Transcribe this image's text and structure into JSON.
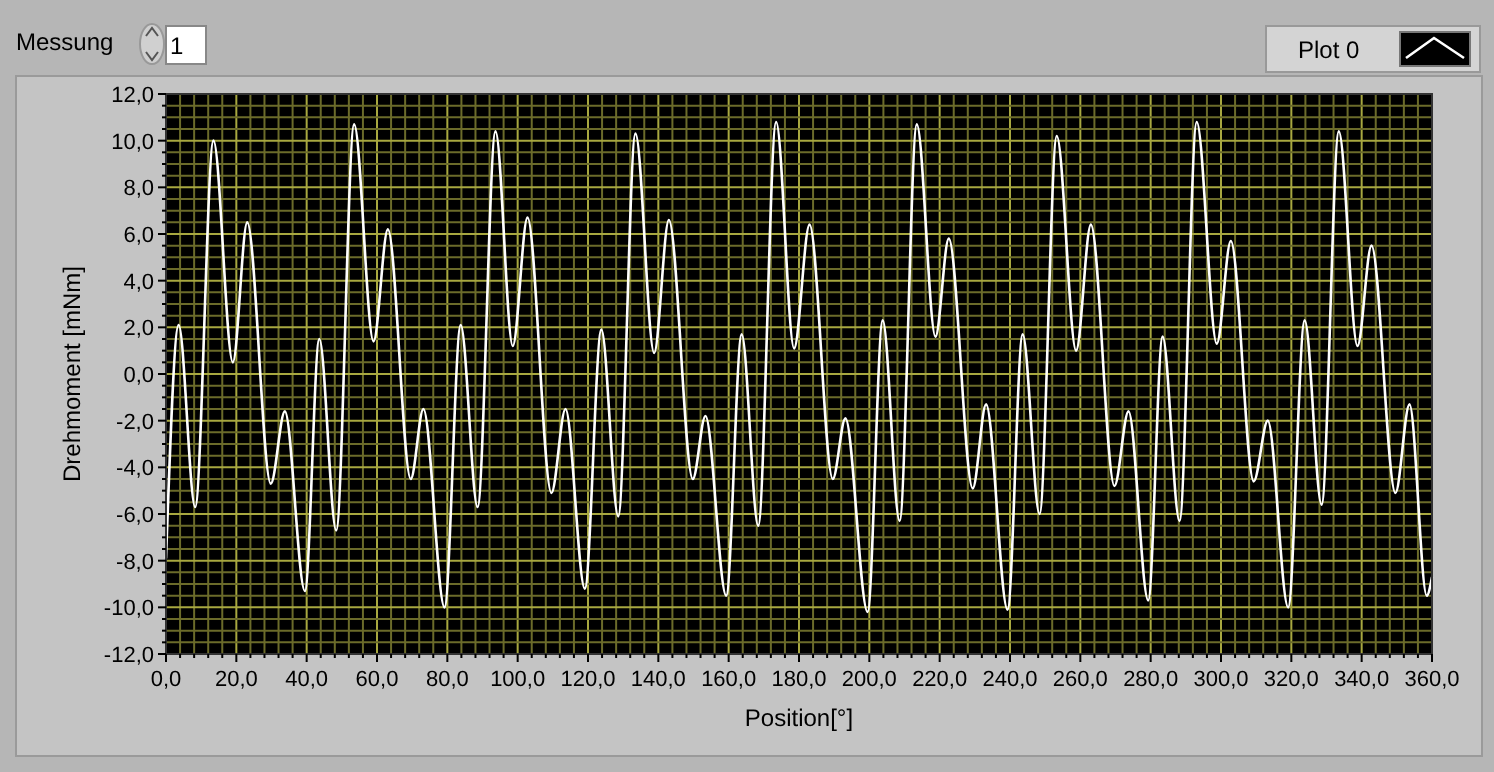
{
  "chart_data": {
    "type": "line",
    "xlabel": "Position[°]",
    "ylabel": "Drehmoment [mNm]",
    "annotations": [
      "Messung",
      "1"
    ],
    "xlim": [
      0,
      360
    ],
    "ylim": [
      -12,
      12
    ],
    "xticks": [
      {
        "value": 0,
        "label": "0,0"
      },
      {
        "value": 4,
        "label": null
      },
      {
        "value": 8,
        "label": null
      },
      {
        "value": 12,
        "label": null
      },
      {
        "value": 16,
        "label": null
      },
      {
        "value": 20,
        "label": "20,0"
      },
      {
        "value": 24,
        "label": null
      },
      {
        "value": 28,
        "label": null
      },
      {
        "value": 32,
        "label": null
      },
      {
        "value": 36,
        "label": null
      },
      {
        "value": 40,
        "label": "40,0"
      },
      {
        "value": 44,
        "label": null
      },
      {
        "value": 48,
        "label": null
      },
      {
        "value": 52,
        "label": null
      },
      {
        "value": 56,
        "label": null
      },
      {
        "value": 60,
        "label": "60,0"
      },
      {
        "value": 64,
        "label": null
      },
      {
        "value": 68,
        "label": null
      },
      {
        "value": 72,
        "label": null
      },
      {
        "value": 76,
        "label": null
      },
      {
        "value": 80,
        "label": "80,0"
      },
      {
        "value": 84,
        "label": null
      },
      {
        "value": 88,
        "label": null
      },
      {
        "value": 92,
        "label": null
      },
      {
        "value": 96,
        "label": null
      },
      {
        "value": 100,
        "label": "100,0"
      },
      {
        "value": 104,
        "label": null
      },
      {
        "value": 108,
        "label": null
      },
      {
        "value": 112,
        "label": null
      },
      {
        "value": 116,
        "label": null
      },
      {
        "value": 120,
        "label": "120,0"
      },
      {
        "value": 124,
        "label": null
      },
      {
        "value": 128,
        "label": null
      },
      {
        "value": 132,
        "label": null
      },
      {
        "value": 136,
        "label": null
      },
      {
        "value": 140,
        "label": "140,0"
      },
      {
        "value": 144,
        "label": null
      },
      {
        "value": 148,
        "label": null
      },
      {
        "value": 152,
        "label": null
      },
      {
        "value": 156,
        "label": null
      },
      {
        "value": 160,
        "label": "160,0"
      },
      {
        "value": 164,
        "label": null
      },
      {
        "value": 168,
        "label": null
      },
      {
        "value": 172,
        "label": null
      },
      {
        "value": 176,
        "label": null
      },
      {
        "value": 180,
        "label": "180,0"
      },
      {
        "value": 184,
        "label": null
      },
      {
        "value": 188,
        "label": null
      },
      {
        "value": 192,
        "label": null
      },
      {
        "value": 196,
        "label": null
      },
      {
        "value": 200,
        "label": "200,0"
      },
      {
        "value": 204,
        "label": null
      },
      {
        "value": 208,
        "label": null
      },
      {
        "value": 212,
        "label": null
      },
      {
        "value": 216,
        "label": null
      },
      {
        "value": 220,
        "label": "220,0"
      },
      {
        "value": 224,
        "label": null
      },
      {
        "value": 228,
        "label": null
      },
      {
        "value": 232,
        "label": null
      },
      {
        "value": 236,
        "label": null
      },
      {
        "value": 240,
        "label": "240,0"
      },
      {
        "value": 244,
        "label": null
      },
      {
        "value": 248,
        "label": null
      },
      {
        "value": 252,
        "label": null
      },
      {
        "value": 256,
        "label": null
      },
      {
        "value": 260,
        "label": "260,0"
      },
      {
        "value": 264,
        "label": null
      },
      {
        "value": 268,
        "label": null
      },
      {
        "value": 272,
        "label": null
      },
      {
        "value": 276,
        "label": null
      },
      {
        "value": 280,
        "label": "280,0"
      },
      {
        "value": 284,
        "label": null
      },
      {
        "value": 288,
        "label": null
      },
      {
        "value": 292,
        "label": null
      },
      {
        "value": 296,
        "label": null
      },
      {
        "value": 300,
        "label": "300,0"
      },
      {
        "value": 304,
        "label": null
      },
      {
        "value": 308,
        "label": null
      },
      {
        "value": 312,
        "label": null
      },
      {
        "value": 316,
        "label": null
      },
      {
        "value": 320,
        "label": "320,0"
      },
      {
        "value": 324,
        "label": null
      },
      {
        "value": 328,
        "label": null
      },
      {
        "value": 332,
        "label": null
      },
      {
        "value": 336,
        "label": null
      },
      {
        "value": 340,
        "label": "340,0"
      },
      {
        "value": 344,
        "label": null
      },
      {
        "value": 348,
        "label": null
      },
      {
        "value": 352,
        "label": null
      },
      {
        "value": 356,
        "label": null
      },
      {
        "value": 360,
        "label": "360,0"
      }
    ],
    "yticks": [
      {
        "value": -12,
        "label": "-12,0"
      },
      {
        "value": -11.5,
        "label": null
      },
      {
        "value": -11,
        "label": null
      },
      {
        "value": -10.5,
        "label": null
      },
      {
        "value": -10,
        "label": "-10,0"
      },
      {
        "value": -9.5,
        "label": null
      },
      {
        "value": -9,
        "label": null
      },
      {
        "value": -8.5,
        "label": null
      },
      {
        "value": -8,
        "label": "-8,0"
      },
      {
        "value": -7.5,
        "label": null
      },
      {
        "value": -7,
        "label": null
      },
      {
        "value": -6.5,
        "label": null
      },
      {
        "value": -6,
        "label": "-6,0"
      },
      {
        "value": -5.5,
        "label": null
      },
      {
        "value": -5,
        "label": null
      },
      {
        "value": -4.5,
        "label": null
      },
      {
        "value": -4,
        "label": "-4,0"
      },
      {
        "value": -3.5,
        "label": null
      },
      {
        "value": -3,
        "label": null
      },
      {
        "value": -2.5,
        "label": null
      },
      {
        "value": -2,
        "label": "-2,0"
      },
      {
        "value": -1.5,
        "label": null
      },
      {
        "value": -1,
        "label": null
      },
      {
        "value": -0.5,
        "label": null
      },
      {
        "value": 0,
        "label": "0,0"
      },
      {
        "value": 0.5,
        "label": null
      },
      {
        "value": 1,
        "label": null
      },
      {
        "value": 1.5,
        "label": null
      },
      {
        "value": 2,
        "label": "2,0"
      },
      {
        "value": 2.5,
        "label": null
      },
      {
        "value": 3,
        "label": null
      },
      {
        "value": 3.5,
        "label": null
      },
      {
        "value": 4,
        "label": "4,0"
      },
      {
        "value": 4.5,
        "label": null
      },
      {
        "value": 5,
        "label": null
      },
      {
        "value": 5.5,
        "label": null
      },
      {
        "value": 6,
        "label": "6,0"
      },
      {
        "value": 6.5,
        "label": null
      },
      {
        "value": 7,
        "label": null
      },
      {
        "value": 7.5,
        "label": null
      },
      {
        "value": 8,
        "label": "8,0"
      },
      {
        "value": 8.5,
        "label": null
      },
      {
        "value": 9,
        "label": null
      },
      {
        "value": 9.5,
        "label": null
      },
      {
        "value": 10,
        "label": "10,0"
      },
      {
        "value": 10.5,
        "label": null
      },
      {
        "value": 11,
        "label": null
      },
      {
        "value": 11.5,
        "label": null
      },
      {
        "value": 12,
        "label": "12,0"
      }
    ],
    "grid": true,
    "legend": "top right",
    "marker": "none",
    "line_style": "solid",
    "series": [
      {
        "name": "Plot 0",
        "color": "#ffffff",
        "x": [
          0,
          3.6,
          8.3,
          13.5,
          19,
          23.1,
          29.8,
          33.8,
          39.5,
          43.6,
          48.4,
          53.5,
          59,
          63.1,
          69.6,
          73.2,
          79.2,
          83.8,
          88.6,
          93.7,
          98.6,
          102.8,
          109.6,
          113.6,
          119.1,
          123.8,
          128.6,
          133.5,
          138.8,
          143,
          149.8,
          153.4,
          159.3,
          163.7,
          168.4,
          173.5,
          178.6,
          183,
          189.6,
          193.2,
          199.5,
          203.8,
          208.6,
          213.5,
          218.8,
          222.6,
          229.4,
          233.2,
          239.3,
          243.6,
          248.4,
          253.3,
          258.8,
          263,
          269.7,
          273.7,
          279.3,
          283.4,
          288.2,
          293.1,
          298.8,
          302.8,
          309.3,
          313.3,
          319.1,
          323.8,
          328.6,
          333.5,
          338.8,
          342.8,
          349.6,
          353.6,
          358.5,
          360
        ],
        "values": [
          -7.9,
          2.1,
          -5.7,
          10.0,
          0.5,
          6.5,
          -4.7,
          -1.6,
          -9.3,
          1.5,
          -6.7,
          10.7,
          1.4,
          6.2,
          -4.5,
          -1.5,
          -10.0,
          2.1,
          -5.7,
          10.4,
          1.2,
          6.7,
          -5.1,
          -1.5,
          -9.2,
          1.9,
          -6.1,
          10.3,
          0.9,
          6.6,
          -4.5,
          -1.8,
          -9.5,
          1.7,
          -6.5,
          10.8,
          1.1,
          6.4,
          -4.5,
          -1.9,
          -10.2,
          2.3,
          -6.3,
          10.7,
          1.6,
          5.8,
          -4.9,
          -1.3,
          -10.1,
          1.7,
          -6.0,
          10.2,
          1.0,
          6.4,
          -4.8,
          -1.6,
          -9.7,
          1.6,
          -6.3,
          10.8,
          1.3,
          5.7,
          -4.6,
          -2.0,
          -10.0,
          2.3,
          -5.6,
          10.4,
          1.2,
          5.5,
          -5.1,
          -1.3,
          -9.5,
          -8.7
        ]
      }
    ]
  }
}
